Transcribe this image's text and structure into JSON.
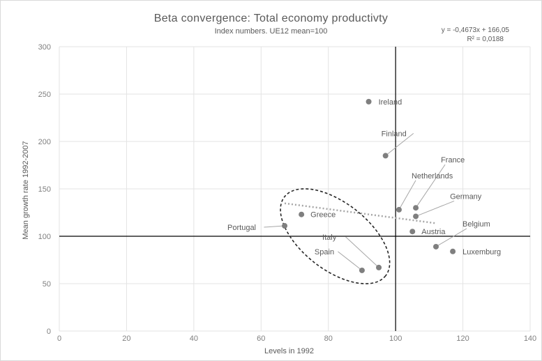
{
  "chart_data": {
    "type": "scatter",
    "title": "Beta convergence: Total economy productivty",
    "subtitle": "Index numbers. UE12 mean=100",
    "trendline": {
      "equation": "y = -0,4673x + 166,05",
      "r_squared": "R² = 0,0188",
      "slope": -0.4673,
      "intercept": 166.05,
      "x_range": [
        67,
        112
      ],
      "style": "dotted",
      "color": "#a6a6a6"
    },
    "xlabel": "Levels in 1992",
    "ylabel": "Mean growth rate 1992-2007",
    "xlim": [
      0,
      140
    ],
    "ylim": [
      0,
      300
    ],
    "x_ticks": [
      0,
      20,
      40,
      60,
      80,
      100,
      120,
      140
    ],
    "y_ticks": [
      0,
      50,
      100,
      150,
      200,
      250,
      300
    ],
    "grid": "vertical and horizontal",
    "reference_lines": {
      "x": 100,
      "y": 100
    },
    "point_color": "#7f7f7f",
    "points": [
      {
        "label": "Ireland",
        "x": 92,
        "y": 242
      },
      {
        "label": "Finland",
        "x": 97,
        "y": 185
      },
      {
        "label": "France",
        "x": 106,
        "y": 130
      },
      {
        "label": "Netherlands",
        "x": 101,
        "y": 128
      },
      {
        "label": "Germany",
        "x": 106,
        "y": 121
      },
      {
        "label": "Austria",
        "x": 105,
        "y": 105
      },
      {
        "label": "Belgium",
        "x": 112,
        "y": 89
      },
      {
        "label": "Luxemburg",
        "x": 117,
        "y": 84
      },
      {
        "label": "Greece",
        "x": 72,
        "y": 123
      },
      {
        "label": "Portugal",
        "x": 67,
        "y": 111
      },
      {
        "label": "Italy",
        "x": 95,
        "y": 67
      },
      {
        "label": "Spain",
        "x": 90,
        "y": 64
      }
    ],
    "highlight_ellipse": {
      "center_x": 82,
      "center_y": 100,
      "style": "dashed"
    }
  }
}
